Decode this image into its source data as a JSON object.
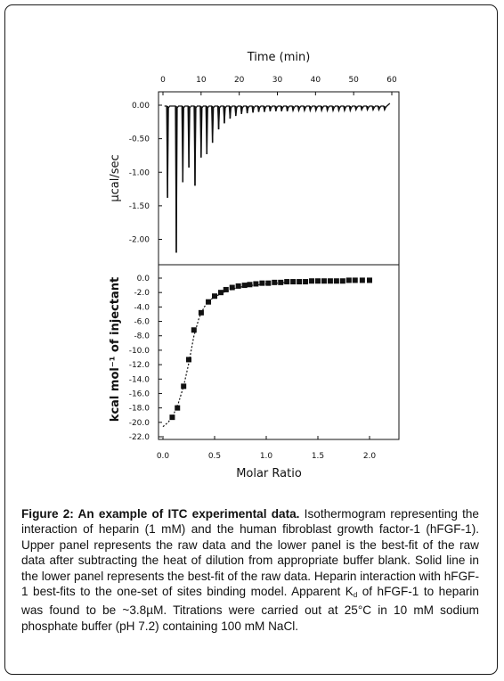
{
  "chart_data": [
    {
      "type": "line",
      "panel": "upper",
      "title": "",
      "xlabel": "Time (min)",
      "ylabel": "µcal/sec",
      "xlim": [
        0,
        60
      ],
      "ylim": [
        -2.2,
        0.05
      ],
      "x_ticks": [
        "0",
        "10",
        "20",
        "30",
        "40",
        "50",
        "60"
      ],
      "x_tick_values": [
        0,
        10,
        20,
        30,
        40,
        50,
        60
      ],
      "y_ticks": [
        "0.00",
        "-0.50",
        "-1.00",
        "-1.50",
        "-2.00"
      ],
      "y_tick_values": [
        0,
        -0.5,
        -1.0,
        -1.5,
        -2.0
      ],
      "series": [
        {
          "injection_time_min": [
            1.2,
            3.5,
            5.2,
            6.8,
            8.4,
            10.0,
            11.5,
            13.0,
            14.6,
            16.1,
            17.6,
            19.1,
            20.6,
            22.1,
            23.6,
            25.1,
            26.6,
            28.1,
            29.6,
            31.1,
            32.6,
            34.1,
            35.6,
            37.1,
            38.6,
            40.1,
            41.6,
            43.1,
            44.6,
            46.1,
            47.6,
            49.1,
            50.6,
            52.1,
            53.6,
            55.1,
            56.6,
            58.1
          ],
          "peak_ucal_per_sec": [
            -1.38,
            -2.2,
            -1.15,
            -0.93,
            -1.2,
            -0.78,
            -0.73,
            -0.56,
            -0.36,
            -0.27,
            -0.2,
            -0.16,
            -0.13,
            -0.12,
            -0.11,
            -0.1,
            -0.1,
            -0.09,
            -0.09,
            -0.09,
            -0.09,
            -0.08,
            -0.08,
            -0.08,
            -0.08,
            -0.08,
            -0.08,
            -0.08,
            -0.08,
            -0.08,
            -0.08,
            -0.08,
            -0.07,
            -0.07,
            -0.07,
            -0.07,
            -0.07,
            -0.07
          ]
        }
      ]
    },
    {
      "type": "scatter",
      "panel": "lower",
      "title": "",
      "xlabel": "Molar Ratio",
      "ylabel": "kcal mol⁻¹ of injectant",
      "xlim": [
        0,
        2.2
      ],
      "ylim": [
        -22,
        1
      ],
      "x_ticks": [
        "0.0",
        "0.5",
        "1.0",
        "1.5",
        "2.0"
      ],
      "x_tick_values": [
        0,
        0.5,
        1.0,
        1.5,
        2.0
      ],
      "y_ticks": [
        "0.0",
        "-2.0",
        "-4.0",
        "-6.0",
        "-8.0",
        "-10.0",
        "-12.0",
        "-14.0",
        "-16.0",
        "-18.0",
        "-20.0",
        "-22.0"
      ],
      "y_tick_values": [
        0,
        -2,
        -4,
        -6,
        -8,
        -10,
        -12,
        -14,
        -16,
        -18,
        -20,
        -22
      ],
      "series": [
        {
          "marker": "square",
          "x": [
            0.09,
            0.14,
            0.2,
            0.25,
            0.3,
            0.37,
            0.44,
            0.5,
            0.56,
            0.61,
            0.67,
            0.73,
            0.79,
            0.84,
            0.9,
            0.96,
            1.02,
            1.08,
            1.14,
            1.2,
            1.26,
            1.32,
            1.38,
            1.44,
            1.5,
            1.56,
            1.62,
            1.68,
            1.74,
            1.8,
            1.86,
            1.93,
            2.0
          ],
          "y": [
            -19.3,
            -18.0,
            -15.0,
            -11.3,
            -7.2,
            -4.8,
            -3.3,
            -2.5,
            -2.0,
            -1.6,
            -1.3,
            -1.1,
            -1.0,
            -0.9,
            -0.8,
            -0.7,
            -0.7,
            -0.6,
            -0.6,
            -0.5,
            -0.5,
            -0.5,
            -0.5,
            -0.4,
            -0.4,
            -0.4,
            -0.4,
            -0.4,
            -0.4,
            -0.3,
            -0.3,
            -0.3,
            -0.3
          ]
        },
        {
          "line_style": "dotted",
          "x": [
            0.0,
            0.05,
            0.1,
            0.15,
            0.2,
            0.25,
            0.3,
            0.35,
            0.4,
            0.45,
            0.5,
            0.6,
            0.7,
            0.8,
            1.0,
            1.2
          ],
          "y": [
            -20.6,
            -20.0,
            -19.0,
            -17.3,
            -15.0,
            -11.8,
            -8.0,
            -5.5,
            -4.0,
            -3.1,
            -2.6,
            -1.9,
            -1.4,
            -1.1,
            -0.8,
            -0.6
          ]
        }
      ]
    }
  ],
  "caption": {
    "label": "Figure 2: An example of ITC experimental data.",
    "text_1": " Isothermogram representing the interaction of heparin (1 mM) and the human fibroblast growth factor-1 (hFGF-1). Upper panel represents the raw data and the lower panel is the best-fit of the raw data after subtracting the heat of dilution from appropriate buffer blank. Solid line in the lower panel represents the best-fit of the raw data. Heparin interaction with hFGF-1 best-fits to the one-set of sites binding model. Apparent K",
    "kd_subscript": "d",
    "text_2": " of hFGF-1 to heparin was found to be ~3.8µM. Titrations were carried out at 25°C in 10 mM sodium phosphate buffer (pH 7.2) containing 100 mM NaCl."
  }
}
